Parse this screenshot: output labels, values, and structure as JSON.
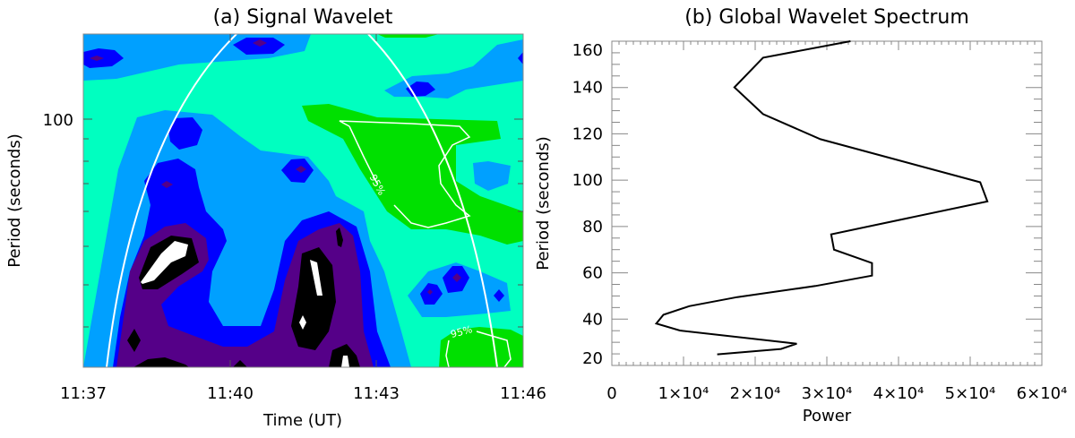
{
  "chart_data": [
    {
      "type": "heatmap",
      "title": "(a) Signal Wavelet",
      "xlabel": "Time (UT)",
      "ylabel": "Period (seconds)",
      "x_tick_labels": [
        "11:37",
        "11:40",
        "11:43",
        "11:46"
      ],
      "y_tick_labels": [
        "100"
      ],
      "y_scale": "log",
      "annotations": [
        "95%",
        "95%"
      ],
      "colors": {
        "level0": "#00FFC0",
        "level1": "#00A0FF",
        "level2": "#0000FF",
        "level3": "#550088",
        "level4": "#000000",
        "level5": "#FFFFFF",
        "significant_region": "#00E000",
        "cone_of_influence": "#FFFFFF"
      }
    },
    {
      "type": "line",
      "title": "(b) Global Wavelet Spectrum",
      "xlabel": "Power",
      "ylabel": "Period (seconds)",
      "xlim": [
        0,
        60000
      ],
      "ylim": [
        20,
        160
      ],
      "x_tick_labels": [
        "0",
        "1×10⁴",
        "2×10⁴",
        "3×10⁴",
        "4×10⁴",
        "5×10⁴",
        "6×10⁴"
      ],
      "y_tick_labels": [
        "20",
        "40",
        "60",
        "80",
        "100",
        "120",
        "140",
        "160"
      ],
      "series": [
        {
          "color": "#000000",
          "power": [
            33300,
            21100,
            17100,
            21100,
            29100,
            51400,
            52400,
            30600,
            31000,
            36300,
            36300,
            28400,
            17500,
            10800,
            7200,
            6200,
            9500,
            25800,
            23600,
            14700
          ],
          "period": [
            160,
            152.9,
            140.1,
            128.5,
            117.7,
            99.1,
            90.8,
            76.6,
            70.0,
            64.2,
            58.8,
            54.3,
            49.5,
            45.6,
            41.9,
            38.1,
            35.1,
            29.4,
            27.1,
            24.8
          ]
        }
      ]
    }
  ]
}
